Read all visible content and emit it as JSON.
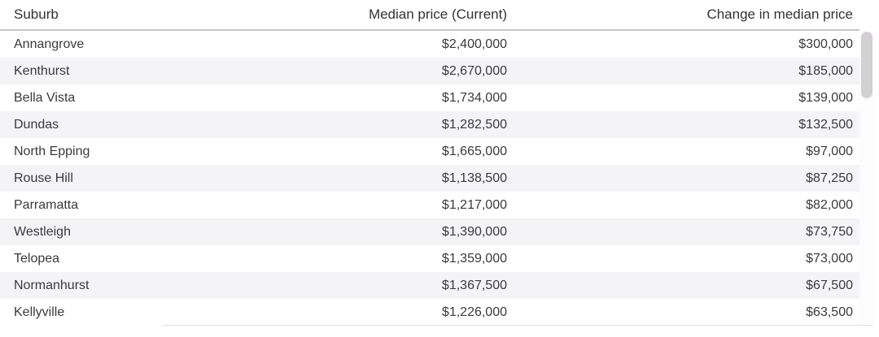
{
  "chart_data": {
    "type": "table",
    "columns": [
      "Suburb",
      "Median price (Current)",
      "Change in median price"
    ],
    "rows": [
      {
        "suburb": "Annangrove",
        "median_price_current": "$2,400,000",
        "change_in_median_price": "$300,000"
      },
      {
        "suburb": "Kenthurst",
        "median_price_current": "$2,670,000",
        "change_in_median_price": "$185,000"
      },
      {
        "suburb": "Bella Vista",
        "median_price_current": "$1,734,000",
        "change_in_median_price": "$139,000"
      },
      {
        "suburb": "Dundas",
        "median_price_current": "$1,282,500",
        "change_in_median_price": "$132,500"
      },
      {
        "suburb": "North Epping",
        "median_price_current": "$1,665,000",
        "change_in_median_price": "$97,000"
      },
      {
        "suburb": "Rouse Hill",
        "median_price_current": "$1,138,500",
        "change_in_median_price": "$87,250"
      },
      {
        "suburb": "Parramatta",
        "median_price_current": "$1,217,000",
        "change_in_median_price": "$82,000"
      },
      {
        "suburb": "Westleigh",
        "median_price_current": "$1,390,000",
        "change_in_median_price": "$73,750"
      },
      {
        "suburb": "Telopea",
        "median_price_current": "$1,359,000",
        "change_in_median_price": "$73,000"
      },
      {
        "suburb": "Normanhurst",
        "median_price_current": "$1,367,500",
        "change_in_median_price": "$67,500"
      },
      {
        "suburb": "Kellyville",
        "median_price_current": "$1,226,000",
        "change_in_median_price": "$63,500"
      }
    ],
    "layout": {
      "alt_row_shading": true,
      "value_alignment": "right",
      "suburb_alignment": "left"
    }
  },
  "colors": {
    "text": "#3a3a3a",
    "header_text": "#333333",
    "alt_row_bg": "#f4f3f6",
    "header_underline": "#c6c6c6",
    "scrollbar_thumb": "#d2d0d3",
    "bottom_border": "#dcdcdc"
  }
}
